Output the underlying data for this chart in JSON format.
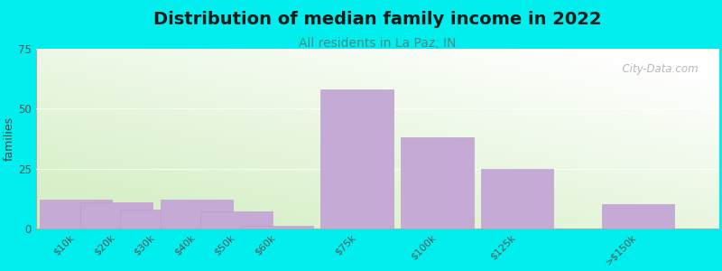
{
  "title": "Distribution of median family income in 2022",
  "subtitle": "All residents in La Paz, IN",
  "ylabel": "families",
  "categories": [
    "$10k",
    "$20k",
    "$30k",
    "$40k",
    "$50k",
    "$60k",
    "$75k",
    "$100k",
    "$125k",
    ">$150k"
  ],
  "values": [
    12,
    11,
    8,
    12,
    7,
    1,
    58,
    38,
    25,
    10
  ],
  "bar_color": "#c4aad4",
  "bar_edge_color": "#b898cc",
  "background_color": "#00EEEE",
  "plot_bg_top_left": "#e8f5e0",
  "plot_bg_top_right": "#f8fbf6",
  "plot_bg_bottom_left": "#d0e8c0",
  "plot_bg_bottom_right": "#ffffff",
  "ylim": [
    0,
    75
  ],
  "yticks": [
    0,
    25,
    50,
    75
  ],
  "title_fontsize": 14,
  "subtitle_fontsize": 10,
  "ylabel_fontsize": 9,
  "watermark_text": "  City-Data.com",
  "bar_positions": [
    0,
    1,
    2,
    3,
    4,
    5,
    7,
    9,
    11,
    14
  ],
  "bar_width": 1.8,
  "xlim": [
    -1.0,
    16.0
  ],
  "title_color": "#1a1a1a",
  "subtitle_color": "#4a8a8a",
  "tick_label_color": "#555555",
  "ylabel_color": "#444444"
}
